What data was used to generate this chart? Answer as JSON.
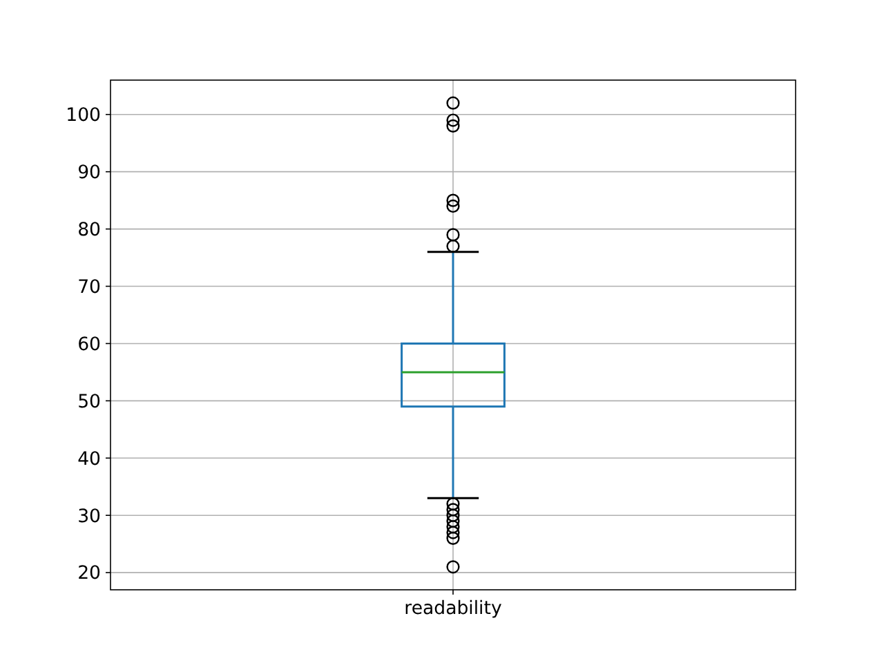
{
  "chart_data": {
    "type": "box",
    "categories": [
      "readability"
    ],
    "series": [
      {
        "color": "#1f77b4",
        "boxes": [
          {
            "low": 33,
            "q1": 49,
            "median": 55,
            "q3": 60,
            "high": 76,
            "outliers": [
              102,
              99,
              98,
              85,
              84,
              79,
              77,
              32,
              31,
              30,
              29,
              28,
              27,
              26,
              21
            ]
          }
        ]
      }
    ],
    "ylim": [
      17,
      106
    ],
    "yticks": [
      20,
      30,
      40,
      50,
      60,
      70,
      80,
      90,
      100
    ],
    "grid": true
  }
}
